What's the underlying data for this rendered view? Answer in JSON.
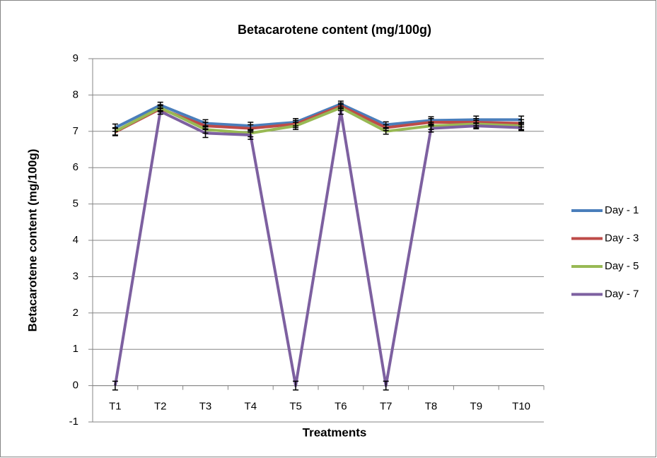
{
  "chart_data": {
    "type": "line",
    "title": "Betacarotene content (mg/100g)",
    "x_label": "Treatments",
    "y_label": "Betacarotene content (mg/100g)",
    "categories": [
      "T1",
      "T2",
      "T3",
      "T4",
      "T5",
      "T6",
      "T7",
      "T8",
      "T9",
      "T10"
    ],
    "series": [
      {
        "name": "Day - 1",
        "color": "#4a7ebb",
        "values": [
          7.1,
          7.72,
          7.22,
          7.15,
          7.25,
          7.75,
          7.18,
          7.3,
          7.32,
          7.32
        ],
        "errors": [
          0.1,
          0.08,
          0.1,
          0.1,
          0.1,
          0.08,
          0.08,
          0.1,
          0.1,
          0.1
        ]
      },
      {
        "name": "Day - 3",
        "color": "#be4b48",
        "values": [
          6.98,
          7.62,
          7.15,
          7.08,
          7.2,
          7.7,
          7.1,
          7.25,
          7.25,
          7.22
        ],
        "errors": [
          0.1,
          0.08,
          0.1,
          0.1,
          0.1,
          0.08,
          0.08,
          0.1,
          0.1,
          0.1
        ]
      },
      {
        "name": "Day - 5",
        "color": "#98b954",
        "values": [
          7.0,
          7.65,
          7.05,
          6.95,
          7.15,
          7.65,
          7.0,
          7.15,
          7.2,
          7.15
        ],
        "errors": [
          0.1,
          0.08,
          0.1,
          0.1,
          0.1,
          0.08,
          0.08,
          0.1,
          0.1,
          0.1
        ]
      },
      {
        "name": "Day - 7",
        "color": "#7d60a0",
        "values": [
          0,
          7.55,
          6.95,
          6.9,
          0,
          7.55,
          0,
          7.08,
          7.15,
          7.1
        ],
        "errors": [
          0.12,
          0.08,
          0.12,
          0.12,
          0.12,
          0.08,
          0.12,
          0.1,
          0.08,
          0.08
        ]
      }
    ],
    "ylim": [
      -1,
      9
    ],
    "yticks": [
      -1,
      0,
      1,
      2,
      3,
      4,
      5,
      6,
      7,
      8,
      9
    ],
    "grid": true,
    "legend": "right"
  }
}
